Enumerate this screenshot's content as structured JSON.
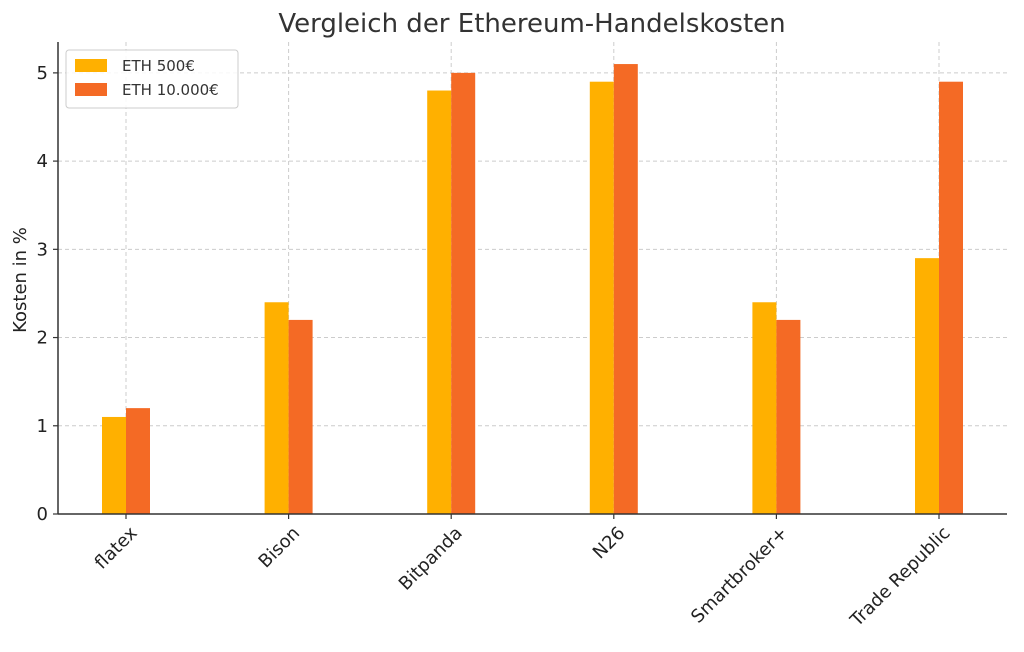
{
  "chart_data": {
    "type": "bar",
    "title": "Vergleich der Ethereum-Handelskosten",
    "xlabel": "",
    "ylabel": "Kosten in %",
    "categories": [
      "flatex",
      "Bison",
      "Bitpanda",
      "N26",
      "Smartbroker+",
      "Trade Republic"
    ],
    "series": [
      {
        "name": "ETH 500€",
        "color": "#FFB000",
        "values": [
          1.1,
          2.4,
          4.8,
          4.9,
          2.4,
          2.9
        ]
      },
      {
        "name": "ETH 10.000€",
        "color": "#F46A25",
        "values": [
          1.2,
          2.2,
          5.0,
          5.1,
          2.2,
          4.9
        ]
      }
    ],
    "ylim": [
      0,
      5.35
    ],
    "yticks": [
      "0",
      "1",
      "2",
      "3",
      "4",
      "5"
    ],
    "grid": true,
    "legend_position": "top-left"
  }
}
